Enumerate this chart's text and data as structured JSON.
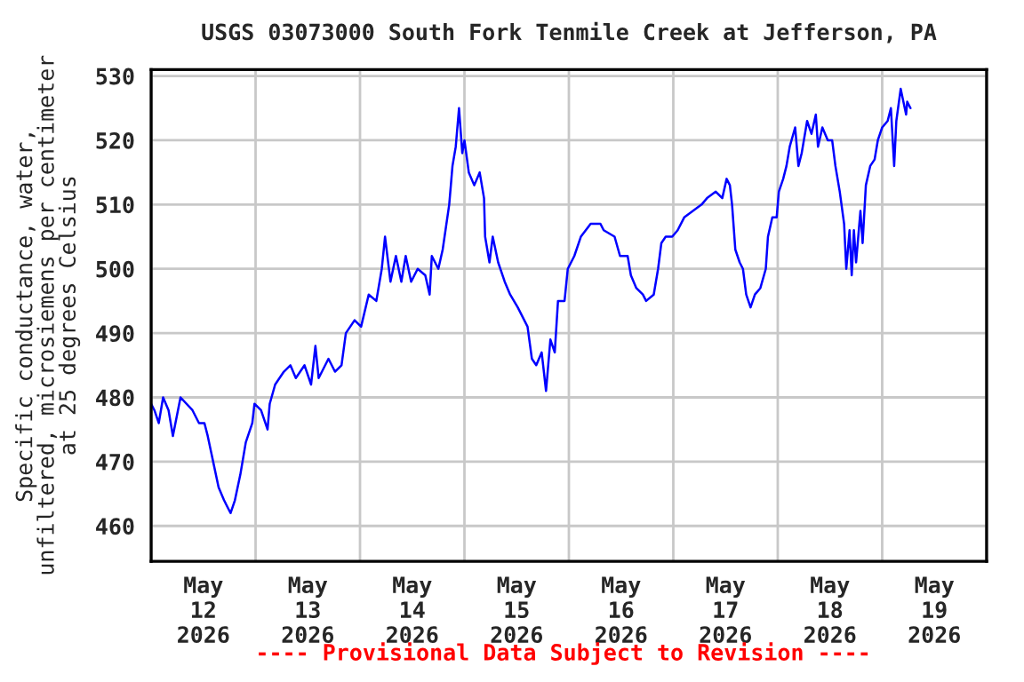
{
  "chart_data": {
    "type": "line",
    "title": "USGS 03073000 South Fork Tenmile Creek at Jefferson, PA",
    "ylabel": "Specific conductance, water,\nunfiltered, microsiemens per centimeter\nat 25 degrees Celsius",
    "annotations": [
      "---- Provisional Data Subject to Revision ----"
    ],
    "series": [
      {
        "color": "#0000ff",
        "x": [
          "2026-05-12T00:00",
          "2026-05-12T00:45",
          "2026-05-12T01:45",
          "2026-05-12T02:45",
          "2026-05-12T04:00",
          "2026-05-12T05:00",
          "2026-05-12T06:45",
          "2026-05-12T09:30",
          "2026-05-12T11:00",
          "2026-05-12T12:15",
          "2026-05-12T13:00",
          "2026-05-12T14:15",
          "2026-05-12T15:30",
          "2026-05-12T16:45",
          "2026-05-12T18:15",
          "2026-05-12T19:15",
          "2026-05-12T20:30",
          "2026-05-12T21:45",
          "2026-05-12T23:15",
          "2026-05-12T23:45",
          "2026-05-13T01:15",
          "2026-05-13T02:45",
          "2026-05-13T03:15",
          "2026-05-13T04:30",
          "2026-05-13T06:30",
          "2026-05-13T08:00",
          "2026-05-13T09:15",
          "2026-05-13T11:15",
          "2026-05-13T12:45",
          "2026-05-13T13:45",
          "2026-05-13T14:30",
          "2026-05-13T16:45",
          "2026-05-13T18:15",
          "2026-05-13T19:45",
          "2026-05-13T20:45",
          "2026-05-13T22:45",
          "2026-05-14T00:15",
          "2026-05-14T02:00",
          "2026-05-14T03:45",
          "2026-05-14T05:00",
          "2026-05-14T05:45",
          "2026-05-14T07:00",
          "2026-05-14T08:15",
          "2026-05-14T09:30",
          "2026-05-14T10:30",
          "2026-05-14T11:45",
          "2026-05-14T13:15",
          "2026-05-14T15:00",
          "2026-05-14T16:00",
          "2026-05-14T16:30",
          "2026-05-14T18:00",
          "2026-05-14T19:00",
          "2026-05-14T20:30",
          "2026-05-14T21:15",
          "2026-05-14T22:00",
          "2026-05-14T22:45",
          "2026-05-14T23:30",
          "2026-05-15T00:00",
          "2026-05-15T01:00",
          "2026-05-15T02:15",
          "2026-05-15T03:30",
          "2026-05-15T04:30",
          "2026-05-15T04:45",
          "2026-05-15T05:45",
          "2026-05-15T06:30",
          "2026-05-15T07:45",
          "2026-05-15T09:15",
          "2026-05-15T10:30",
          "2026-05-15T12:15",
          "2026-05-15T13:45",
          "2026-05-15T14:30",
          "2026-05-15T15:30",
          "2026-05-15T16:30",
          "2026-05-15T17:45",
          "2026-05-15T18:45",
          "2026-05-15T19:45",
          "2026-05-15T20:45",
          "2026-05-15T21:30",
          "2026-05-15T23:00",
          "2026-05-15T23:45",
          "2026-05-16T01:15",
          "2026-05-16T02:45",
          "2026-05-16T05:00",
          "2026-05-16T07:15",
          "2026-05-16T08:00",
          "2026-05-16T10:30",
          "2026-05-16T11:45",
          "2026-05-16T13:30",
          "2026-05-16T14:15",
          "2026-05-16T15:30",
          "2026-05-16T17:00",
          "2026-05-16T17:45",
          "2026-05-16T19:30",
          "2026-05-16T20:30",
          "2026-05-16T21:15",
          "2026-05-16T22:15",
          "2026-05-16T23:45",
          "2026-05-17T01:00",
          "2026-05-17T02:30",
          "2026-05-17T04:30",
          "2026-05-17T06:30",
          "2026-05-17T07:45",
          "2026-05-17T09:45",
          "2026-05-17T11:15",
          "2026-05-17T12:15",
          "2026-05-17T13:00",
          "2026-05-17T13:30",
          "2026-05-17T14:15",
          "2026-05-17T15:15",
          "2026-05-17T16:00",
          "2026-05-17T16:45",
          "2026-05-17T17:45",
          "2026-05-17T18:45",
          "2026-05-17T20:00",
          "2026-05-17T21:15",
          "2026-05-17T21:45",
          "2026-05-17T22:45",
          "2026-05-17T23:45",
          "2026-05-18T00:15",
          "2026-05-18T01:15",
          "2026-05-18T02:00",
          "2026-05-18T02:45",
          "2026-05-18T04:00",
          "2026-05-18T04:45",
          "2026-05-18T05:30",
          "2026-05-18T06:45",
          "2026-05-18T07:45",
          "2026-05-18T08:45",
          "2026-05-18T09:15",
          "2026-05-18T10:15",
          "2026-05-18T11:30",
          "2026-05-18T12:30",
          "2026-05-18T13:15",
          "2026-05-18T14:15",
          "2026-05-18T15:15",
          "2026-05-18T15:45",
          "2026-05-18T16:30",
          "2026-05-18T17:00",
          "2026-05-18T17:30",
          "2026-05-18T18:00",
          "2026-05-18T19:00",
          "2026-05-18T19:30",
          "2026-05-18T20:15",
          "2026-05-18T21:15",
          "2026-05-18T22:15",
          "2026-05-18T23:00",
          "2026-05-19T00:00",
          "2026-05-19T01:15",
          "2026-05-19T02:00",
          "2026-05-19T02:45",
          "2026-05-19T03:15",
          "2026-05-19T04:15",
          "2026-05-19T05:30",
          "2026-05-19T05:45",
          "2026-05-19T06:30"
        ],
        "values": [
          479,
          478,
          476,
          480,
          478,
          474,
          480,
          478,
          476,
          476,
          474,
          470,
          466,
          464,
          462,
          464,
          468,
          473,
          476,
          479,
          478,
          475,
          479,
          482,
          484,
          485,
          483,
          485,
          482,
          488,
          483,
          486,
          484,
          485,
          490,
          492,
          491,
          496,
          495,
          500,
          505,
          498,
          502,
          498,
          502,
          498,
          500,
          499,
          496,
          502,
          500,
          503,
          510,
          516,
          519,
          525,
          518,
          520,
          515,
          513,
          515,
          511,
          505,
          501,
          505,
          501,
          498,
          496,
          494,
          492,
          491,
          486,
          485,
          487,
          481,
          489,
          487,
          495,
          495,
          500,
          502,
          505,
          507,
          507,
          506,
          505,
          502,
          502,
          499,
          497,
          496,
          495,
          496,
          500,
          504,
          505,
          505,
          506,
          508,
          509,
          510,
          511,
          512,
          511,
          514,
          513,
          510,
          503,
          501,
          500,
          496,
          494,
          496,
          497,
          500,
          505,
          508,
          508,
          512,
          514,
          516,
          519,
          522,
          516,
          518,
          523,
          521,
          524,
          519,
          522,
          520,
          520,
          516,
          512,
          507,
          500,
          506,
          499,
          506,
          501,
          509,
          504,
          513,
          516,
          517,
          520,
          522,
          523,
          525,
          516,
          523,
          528,
          524,
          526,
          525
        ]
      }
    ],
    "xlim": [
      "2026-05-12",
      "2026-05-20"
    ],
    "xticks": [
      {
        "value": "2026-05-12T00:00",
        "label": null
      },
      {
        "value": "2026-05-13T00:00",
        "label": null
      },
      {
        "value": "2026-05-14T00:00",
        "label": null
      },
      {
        "value": "2026-05-15T00:00",
        "label": null
      },
      {
        "value": "2026-05-16T00:00",
        "label": null
      },
      {
        "value": "2026-05-17T00:00",
        "label": null
      },
      {
        "value": "2026-05-18T00:00",
        "label": null
      },
      {
        "value": "2026-05-19T00:00",
        "label": null
      },
      {
        "value": "2026-05-20T00:00",
        "label": null
      },
      {
        "value": "2026-05-12T12:00",
        "label": "May\n12\n2026"
      },
      {
        "value": "2026-05-13T12:00",
        "label": "May\n13\n2026"
      },
      {
        "value": "2026-05-14T12:00",
        "label": "May\n14\n2026"
      },
      {
        "value": "2026-05-15T12:00",
        "label": "May\n15\n2026"
      },
      {
        "value": "2026-05-16T12:00",
        "label": "May\n16\n2026"
      },
      {
        "value": "2026-05-17T12:00",
        "label": "May\n17\n2026"
      },
      {
        "value": "2026-05-18T12:00",
        "label": "May\n18\n2026"
      },
      {
        "value": "2026-05-19T12:00",
        "label": "May\n19\n2026"
      }
    ],
    "ylim": [
      454.5,
      531
    ],
    "yticks": [
      460,
      470,
      480,
      490,
      500,
      510,
      520,
      530
    ],
    "grid": true,
    "legend": false
  }
}
